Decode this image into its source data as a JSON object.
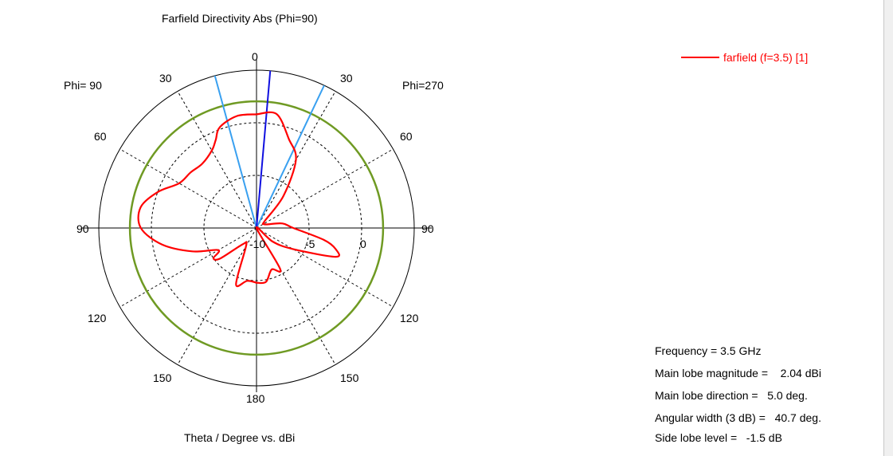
{
  "chart_data": {
    "type": "polar-line",
    "title": "Farfield Directivity Abs (Phi=90)",
    "xlabel": "Theta / Degree vs. dBi",
    "phi_left_label": "Phi= 90",
    "phi_right_label": "Phi=270",
    "angle_tick_labels": {
      "top": "0",
      "upper_left_30": "30",
      "upper_right_30": "30",
      "left_60": "60",
      "right_60": "60",
      "left_90": "90",
      "right_90": "90",
      "left_120": "120",
      "right_120": "120",
      "left_150": "150",
      "right_150": "150",
      "bottom": "180"
    },
    "radial_tick_labels": [
      "-10",
      "-5",
      "0"
    ],
    "r_range_dbi": [
      -10,
      5
    ],
    "legend": {
      "label": "farfield (f=3.5) [1]",
      "color": "#ff0000",
      "position": "top-right"
    },
    "series": {
      "name": "farfield (f=3.5) [1]",
      "color": "#ff0000",
      "theta_deg_right": [
        0,
        10,
        20,
        30,
        40,
        50,
        60,
        70,
        80,
        90,
        100,
        105,
        110,
        120,
        130,
        140,
        150,
        160,
        170,
        180
      ],
      "gain_dbi_right": [
        0.8,
        1.0,
        -1.0,
        -2.5,
        -6,
        -9,
        -9.2,
        -9,
        -7.5,
        -6.5,
        -3.5,
        -2.2,
        -2.0,
        -6,
        -8,
        -10,
        -5.5,
        -5.8,
        -4.8,
        -4.8
      ],
      "theta_deg_left": [
        180,
        170,
        160,
        150,
        140,
        130,
        125,
        120,
        110,
        100,
        90,
        80,
        70,
        60,
        50,
        40,
        30,
        25,
        20,
        10,
        0
      ],
      "gain_dbi_left": [
        -4.8,
        -4.9,
        -4.3,
        -8,
        -8,
        -5.5,
        -5.0,
        -5.8,
        -3.5,
        -0.9,
        1.0,
        1.2,
        0.0,
        -1.5,
        -1.8,
        -2.0,
        -1.5,
        -0.8,
        0.2,
        0.8,
        0.8
      ]
    },
    "reference_circle": {
      "value_dbi": 2.04,
      "color": "#6f9a23",
      "label": "main lobe magnitude"
    },
    "main_lobe_line": {
      "theta_deg": 5.0,
      "color": "#1010e0"
    },
    "beamwidth_lines": {
      "theta_deg": [
        -15.3,
        25.4
      ],
      "color": "#39a0f0"
    },
    "info": {
      "frequency": "Frequency = 3.5 GHz",
      "main_lobe_magnitude": "Main lobe magnitude =    2.04 dBi",
      "main_lobe_direction": "Main lobe direction =   5.0 deg.",
      "angular_width": "Angular width (3 dB) =   40.7 deg.",
      "side_lobe_level": "Side lobe level =   -1.5 dB"
    }
  }
}
